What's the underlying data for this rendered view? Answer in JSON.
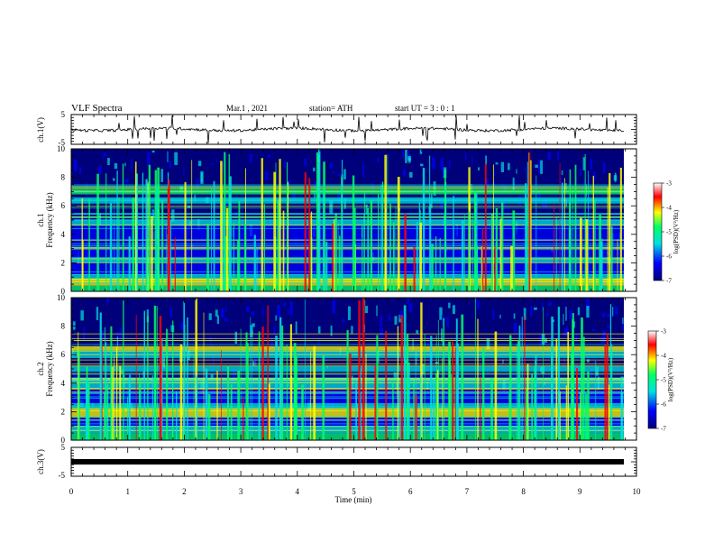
{
  "header": {
    "title": "VLF Spectra",
    "date": "Mar.1  , 2021",
    "station": "station= ATH",
    "start": "start  UT =   3 : 0  : 1"
  },
  "colors": {
    "low": "#00007a",
    "mid_low": "#0000ff",
    "mid": "#00e0e0",
    "mid_high": "#00ff66",
    "high": "#ffff00",
    "peak": "#ff0000",
    "top": "#ffffff"
  },
  "chart_data": [
    {
      "type": "line",
      "ylabel": "ch.1(V)",
      "ylim": [
        -5,
        5
      ],
      "yticks": [
        "5",
        "-5"
      ],
      "note": "waveform trace centred near 0 V with sporadic spikes"
    },
    {
      "type": "heatmap",
      "ylabel_top": "ch.1",
      "ylabel": "Frequency (kHz)",
      "ylim": [
        0,
        10
      ],
      "yticks": [
        "0",
        "2",
        "4",
        "6",
        "8",
        "10"
      ],
      "colorbar": {
        "label": "log(PSD)(V²/Hz)",
        "range": [
          -7,
          -3
        ],
        "ticks": [
          "-3",
          "-4",
          "-5",
          "-6",
          "-7"
        ]
      }
    },
    {
      "type": "heatmap",
      "ylabel_top": "ch.2",
      "ylabel": "Frequency (kHz)",
      "ylim": [
        0,
        10
      ],
      "yticks": [
        "0",
        "2",
        "4",
        "6",
        "8",
        "10"
      ],
      "colorbar": {
        "label": "log(PSD)(V²/Hz)",
        "range": [
          -7,
          -3
        ],
        "ticks": [
          "-3",
          "-4",
          "-5",
          "-6",
          "-7"
        ]
      }
    },
    {
      "type": "line",
      "ylabel": "ch.3(V)",
      "ylim": [
        -5,
        5
      ],
      "yticks": [
        "5",
        "-5"
      ],
      "xlabel": "Time  (min)",
      "xlim": [
        0,
        10
      ],
      "xticks": [
        "0",
        "1",
        "2",
        "3",
        "4",
        "5",
        "6",
        "7",
        "8",
        "9",
        "10"
      ],
      "note": "saturated thick band near -0.3 V"
    }
  ]
}
